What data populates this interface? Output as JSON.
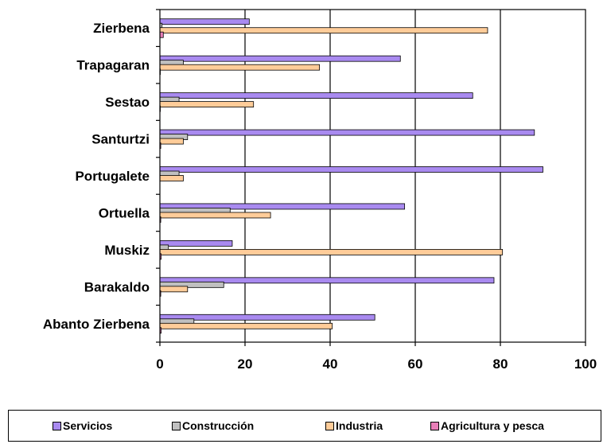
{
  "chart_data": {
    "type": "bar",
    "orientation": "horizontal",
    "title": "",
    "xlabel": "",
    "ylabel": "",
    "categories": [
      "Abanto Zierbena",
      "Barakaldo",
      "Muskiz",
      "Ortuella",
      "Portugalete",
      "Santurtzi",
      "Sestao",
      "Trapagaran",
      "Zierbena"
    ],
    "series": [
      {
        "name": "Servicios",
        "color": "#A98AF0",
        "values": [
          50.5,
          78.5,
          17,
          57.5,
          90,
          88,
          73.5,
          56.5,
          21
        ]
      },
      {
        "name": "Construcción",
        "color": "#C0C0C0",
        "values": [
          8,
          15,
          2,
          16.5,
          4.5,
          6.5,
          4.5,
          5.5,
          0.5
        ]
      },
      {
        "name": "Industria",
        "color": "#FFCC99",
        "values": [
          40.5,
          6.5,
          80.5,
          26,
          5.5,
          5.5,
          22,
          37.5,
          77
        ]
      },
      {
        "name": "Agricultura y pesca",
        "color": "#E87FB8",
        "values": [
          0.3,
          0.2,
          0.3,
          0.2,
          0,
          0.2,
          0.1,
          0.1,
          0.8
        ]
      }
    ],
    "xlim": [
      0,
      100
    ],
    "x_ticks": [
      "0",
      "20",
      "40",
      "60",
      "80",
      "100"
    ],
    "grid": "vertical",
    "legend": {
      "position": "bottom",
      "border": true
    }
  }
}
